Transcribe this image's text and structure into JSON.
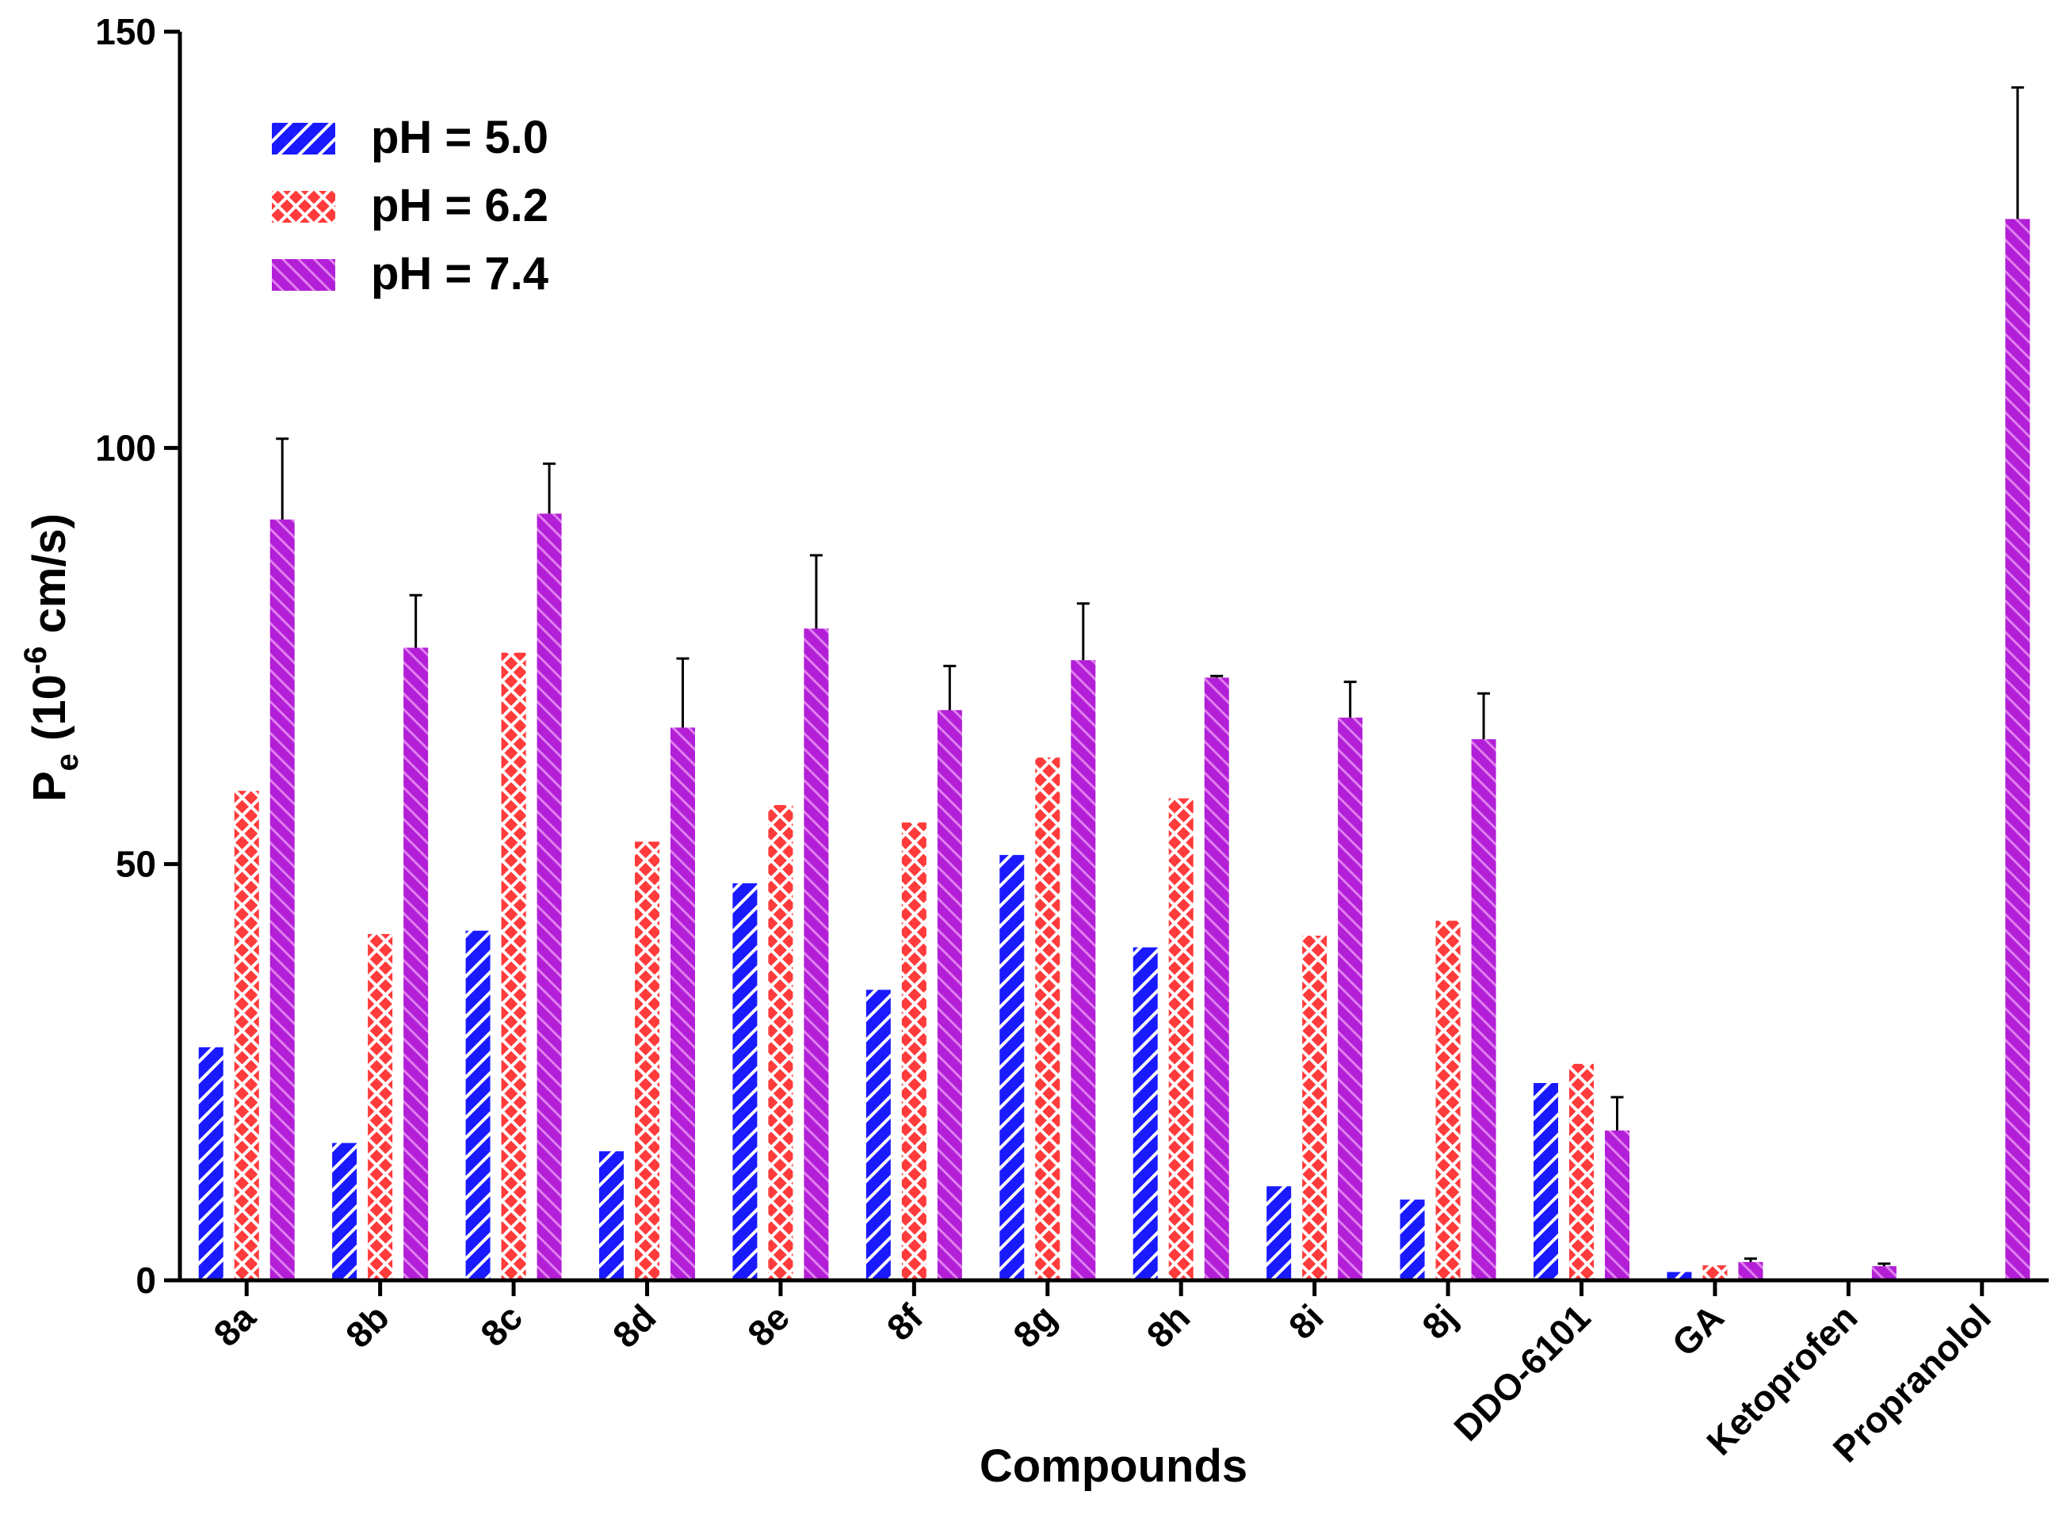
{
  "chart_data": {
    "type": "bar",
    "title": "",
    "xlabel": "Compounds",
    "ylabel_main": "P",
    "ylabel_sub": "e",
    "ylabel_pre": " (10",
    "ylabel_sup": "-6",
    "ylabel_post": " cm/s)",
    "ylim": [
      0,
      150
    ],
    "yticks": [
      0,
      50,
      100,
      150
    ],
    "ytick_labels": [
      "0",
      "50",
      "100",
      "150"
    ],
    "categories": [
      "8a",
      "8b",
      "8c",
      "8d",
      "8e",
      "8f",
      "8g",
      "8h",
      "8i",
      "8j",
      "DDO-6101",
      "GA",
      "Ketoprofen",
      "Propranolol"
    ],
    "series": [
      {
        "name": "pH = 5.0",
        "color": "#1a1aff",
        "pattern": "diagonal-down",
        "values": [
          28,
          16.5,
          42,
          15.5,
          47.7,
          34.9,
          51.1,
          40,
          11.3,
          9.7,
          23.7,
          1.0,
          null,
          null
        ],
        "errors": [
          0,
          0,
          0,
          0,
          0,
          0,
          0,
          0,
          0,
          0,
          0,
          0,
          0,
          0
        ]
      },
      {
        "name": "pH = 6.2",
        "color": "#ff3b3b",
        "pattern": "crosshatch",
        "values": [
          58.8,
          41.6,
          75.4,
          52.7,
          57.1,
          55.0,
          62.8,
          57.9,
          41.4,
          43.2,
          26.0,
          1.8,
          null,
          null
        ],
        "errors": [
          0,
          0,
          0,
          0,
          0,
          0,
          0,
          0,
          0,
          0,
          0,
          0,
          0,
          0
        ]
      },
      {
        "name": "pH = 7.4",
        "color": "#b21fd6",
        "pattern": "diagonal-up",
        "values": [
          91.4,
          76.0,
          92.1,
          66.4,
          78.3,
          68.5,
          74.5,
          72.4,
          67.6,
          65.0,
          18.0,
          2.2,
          1.7,
          127.5
        ],
        "errors": [
          9.7,
          6.3,
          6.0,
          8.3,
          8.8,
          5.3,
          6.8,
          0.2,
          4.3,
          5.5,
          4.0,
          0.4,
          0.3,
          15.8
        ]
      }
    ],
    "legend_position": "top-left",
    "grid": false
  }
}
